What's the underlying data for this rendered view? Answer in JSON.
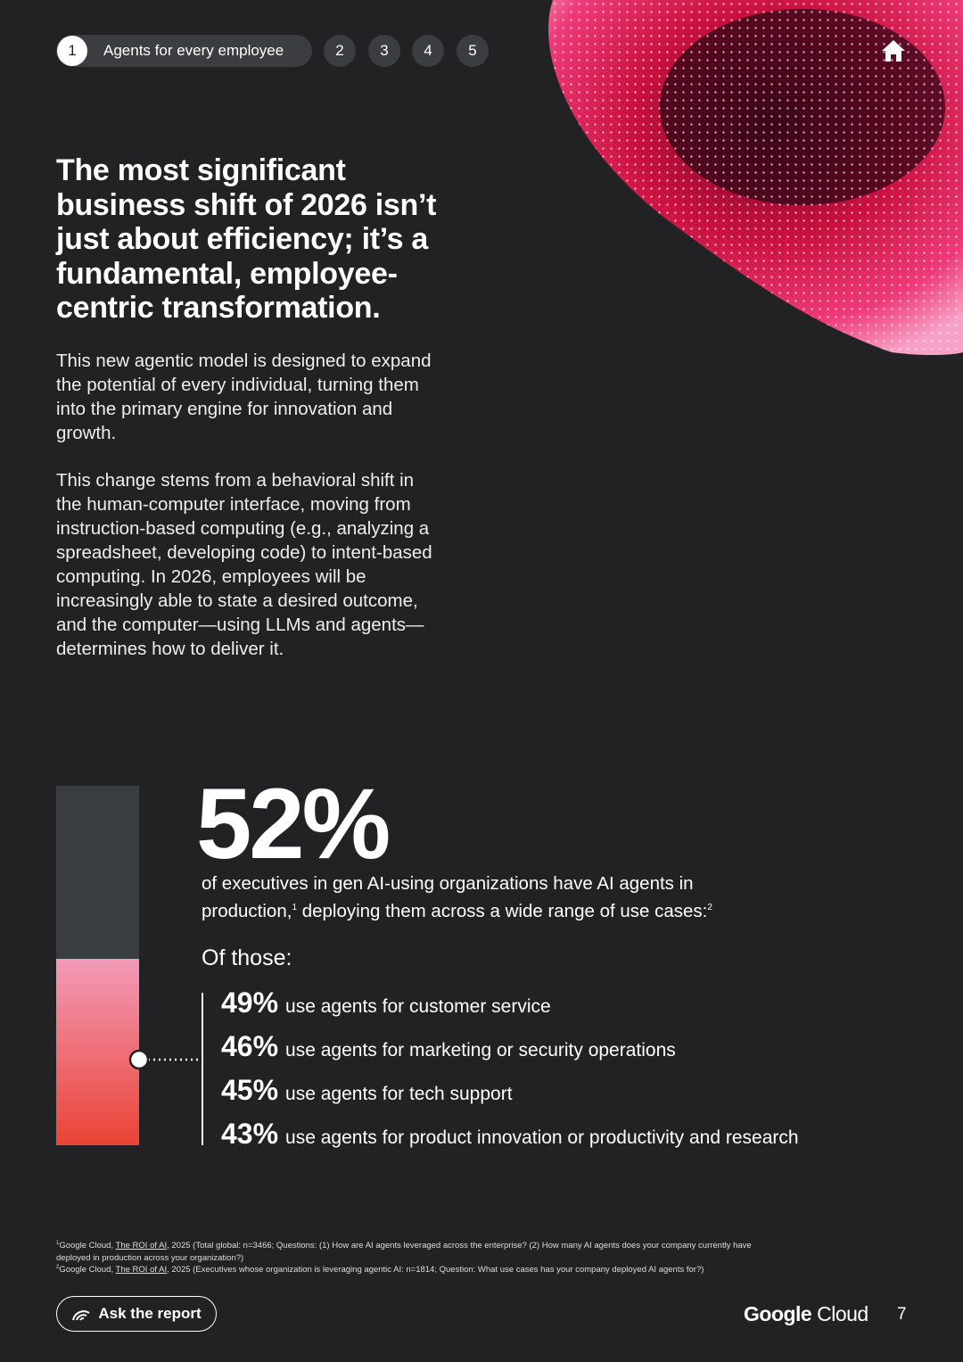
{
  "nav": {
    "items": [
      {
        "number": "1",
        "label": "Agents for every employee"
      },
      {
        "number": "2"
      },
      {
        "number": "3"
      },
      {
        "number": "4"
      },
      {
        "number": "5"
      }
    ]
  },
  "headline": "The most significant business shift of 2026 isn’t just about efficiency; it’s a fundamental, employee-centric transformation.",
  "paragraphs": [
    "This new agentic model is designed to expand the potential of every individual, turning them into the primary engine for innovation and growth.",
    "This change stems from a behavioral shift in the human-computer interface, moving from instruction-based computing (e.g., analyzing a spreadsheet, developing code) to intent-based computing. In 2026, employees will be increasingly able to state a desired outcome, and the computer—using LLMs and agents—determines how to deliver it."
  ],
  "stat": {
    "value": "52%",
    "description": [
      "of executives in gen AI-using organizations have AI agents in production,",
      "1",
      " deploying them across a wide range of use cases:",
      "2"
    ],
    "subheading": "Of those:",
    "items": [
      {
        "value": "49%",
        "text": "use agents for customer service"
      },
      {
        "value": "46%",
        "text": "use agents for marketing or security operations"
      },
      {
        "value": "45%",
        "text": "use agents for tech support"
      },
      {
        "value": "43%",
        "text": "use agents for product innovation or productivity and research"
      }
    ]
  },
  "footnotes": [
    {
      "number": "1",
      "source": "Google Cloud, ",
      "link": "The ROI of AI",
      "text": ", 2025 (Total global: n=3466; Questions: (1) How are AI agents leveraged across the enterprise? (2) How many AI agents does your company currently have deployed in production across your organization?)"
    },
    {
      "number": "2",
      "source": "Google Cloud, ",
      "link": "The ROI of AI",
      "text": ", 2025 (Executives whose organization is leveraging agentic AI: n=1814; Question: What use cases has your company deployed AI agents for?)"
    }
  ],
  "footer": {
    "button": "Ask the report",
    "logo": [
      "Google",
      " Cloud"
    ],
    "page_number": "7"
  }
}
